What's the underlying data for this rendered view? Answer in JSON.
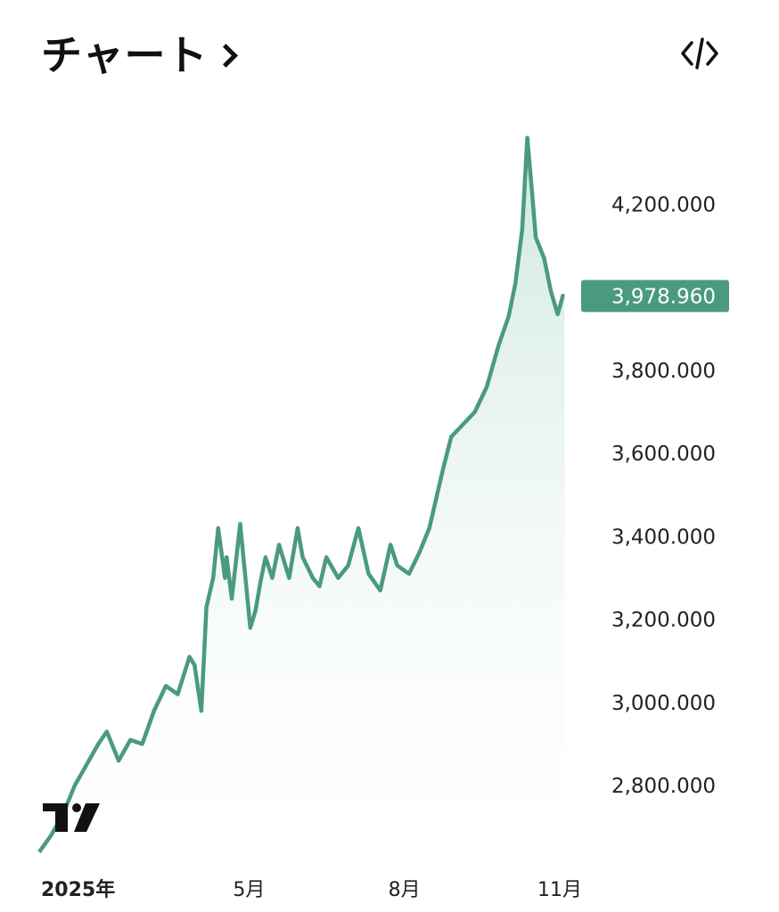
{
  "header": {
    "title": "チャート",
    "chevron_icon": "chevron-right-icon",
    "embed_icon": "code-embed-icon"
  },
  "colors": {
    "line": "#4a9a82",
    "fill_top": "#c5e3dc",
    "tag_bg": "#4a9a82"
  },
  "logo": {
    "text": "TV"
  },
  "chart_data": {
    "type": "area",
    "title": "",
    "xlabel": "",
    "ylabel": "",
    "ylim": [
      2650,
      4370
    ],
    "y_ticks": [
      "4,200.000",
      "3,800.000",
      "3,600.000",
      "3,400.000",
      "3,200.000",
      "3,000.000",
      "2,800.000"
    ],
    "y_tick_values": [
      4200,
      3800,
      3600,
      3400,
      3200,
      3000,
      2800
    ],
    "x_tick_labels": [
      "2025年",
      "5月",
      "8月",
      "11月"
    ],
    "x_tick_dates": [
      "2025-01-01",
      "2025-05-01",
      "2025-08-01",
      "2025-11-01"
    ],
    "last_value": 3978.96,
    "last_value_label": "3,978.960",
    "grid": false,
    "series": [
      {
        "x": [
          "2025-01-01",
          "2025-01-08",
          "2025-01-15",
          "2025-01-22",
          "2025-01-29",
          "2025-02-05",
          "2025-02-10",
          "2025-02-17",
          "2025-02-24",
          "2025-03-03",
          "2025-03-10",
          "2025-03-17",
          "2025-03-24",
          "2025-03-31",
          "2025-04-03",
          "2025-04-07",
          "2025-04-10",
          "2025-04-14",
          "2025-04-17",
          "2025-04-21",
          "2025-04-22",
          "2025-04-25",
          "2025-04-30",
          "2025-05-06",
          "2025-05-09",
          "2025-05-12",
          "2025-05-15",
          "2025-05-19",
          "2025-05-23",
          "2025-05-29",
          "2025-06-03",
          "2025-06-06",
          "2025-06-12",
          "2025-06-16",
          "2025-06-20",
          "2025-06-27",
          "2025-07-03",
          "2025-07-09",
          "2025-07-15",
          "2025-07-22",
          "2025-07-28",
          "2025-08-01",
          "2025-08-08",
          "2025-08-14",
          "2025-08-20",
          "2025-08-28",
          "2025-09-02",
          "2025-09-09",
          "2025-09-16",
          "2025-09-23",
          "2025-09-30",
          "2025-10-06",
          "2025-10-10",
          "2025-10-14",
          "2025-10-17",
          "2025-10-20",
          "2025-10-22",
          "2025-10-27",
          "2025-10-31",
          "2025-11-04",
          "2025-11-07"
        ],
        "values": [
          2640,
          2680,
          2730,
          2800,
          2850,
          2900,
          2930,
          2860,
          2910,
          2900,
          2980,
          3040,
          3020,
          3110,
          3090,
          2980,
          3230,
          3300,
          3420,
          3300,
          3350,
          3250,
          3430,
          3180,
          3220,
          3290,
          3350,
          3300,
          3380,
          3300,
          3420,
          3350,
          3300,
          3280,
          3350,
          3300,
          3330,
          3420,
          3310,
          3270,
          3380,
          3330,
          3310,
          3360,
          3420,
          3560,
          3640,
          3670,
          3700,
          3760,
          3860,
          3930,
          4010,
          4140,
          4360,
          4220,
          4120,
          4070,
          3990,
          3935,
          3979
        ]
      }
    ]
  }
}
